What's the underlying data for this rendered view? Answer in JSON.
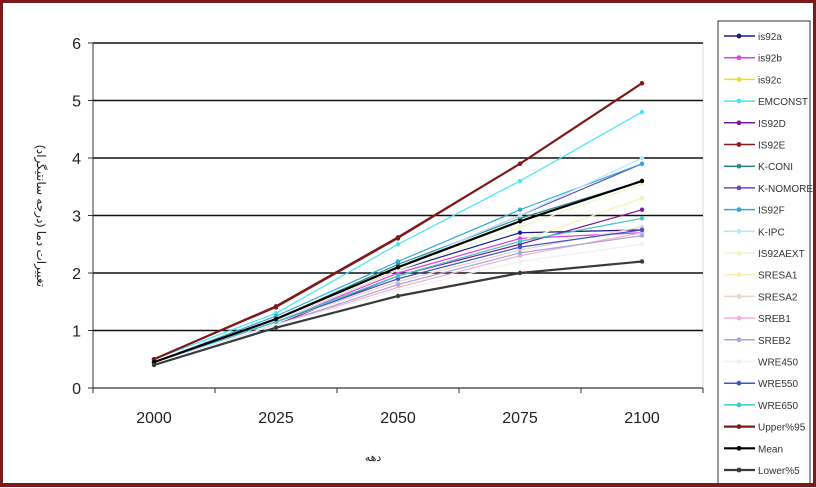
{
  "chart_data": {
    "type": "line",
    "title": "",
    "xlabel": "دهه",
    "ylabel": "تغییرات دما (درجه سانتیگراد)",
    "x": [
      2000,
      2025,
      2050,
      2075,
      2100
    ],
    "x_tick_labels": [
      "2000",
      "2025",
      "2050",
      "2075",
      "2100"
    ],
    "ylim": [
      0,
      6
    ],
    "y_tick_labels": [
      "0",
      "1",
      "2",
      "3",
      "4",
      "5",
      "6"
    ],
    "grid": "horizontal",
    "legend_position": "right",
    "series": [
      {
        "name": "is92a",
        "color": "#1a1a8c",
        "width": 1.2,
        "values": [
          0.45,
          1.15,
          2.05,
          2.7,
          2.75
        ]
      },
      {
        "name": "is92b",
        "color": "#e040e0",
        "width": 1.2,
        "values": [
          0.45,
          1.15,
          2.0,
          2.6,
          2.7
        ]
      },
      {
        "name": "is92c",
        "color": "#f0e020",
        "width": 1.2,
        "values": [
          0.4,
          1.05,
          1.6,
          2.0,
          2.2
        ]
      },
      {
        "name": "EMCONST",
        "color": "#40e8f0",
        "width": 1.2,
        "values": [
          0.5,
          1.3,
          2.5,
          3.6,
          4.8
        ]
      },
      {
        "name": "IS92D",
        "color": "#7a1a9c",
        "width": 1.2,
        "values": [
          0.45,
          1.1,
          1.95,
          2.5,
          3.1
        ]
      },
      {
        "name": "IS92E",
        "color": "#8c1a1a",
        "width": 1.2,
        "values": [
          0.5,
          1.4,
          2.6,
          3.9,
          5.3
        ]
      },
      {
        "name": "K-CONI",
        "color": "#2a8a8a",
        "width": 1.2,
        "values": [
          0.45,
          1.2,
          2.15,
          2.95,
          3.6
        ]
      },
      {
        "name": "K-NOMORE",
        "color": "#6a4ab8",
        "width": 1.2,
        "values": [
          0.45,
          1.2,
          2.1,
          3.0,
          3.9
        ]
      },
      {
        "name": "IS92F",
        "color": "#30a8d8",
        "width": 1.2,
        "values": [
          0.45,
          1.25,
          2.2,
          3.1,
          3.9
        ]
      },
      {
        "name": "K-IPC",
        "color": "#b8e8f8",
        "width": 1.2,
        "values": [
          0.45,
          1.2,
          2.1,
          3.0,
          4.0
        ]
      },
      {
        "name": "IS92AEXT",
        "color": "#e8f8c8",
        "width": 1.2,
        "values": [
          0.45,
          1.15,
          2.05,
          2.8,
          3.55
        ]
      },
      {
        "name": "SRESA1",
        "color": "#f8f0b0",
        "width": 1.2,
        "values": [
          0.45,
          1.15,
          1.95,
          2.55,
          3.3
        ]
      },
      {
        "name": "SRESA2",
        "color": "#f0d0c8",
        "width": 1.2,
        "values": [
          0.45,
          1.15,
          1.85,
          2.4,
          2.8
        ]
      },
      {
        "name": "SREB1",
        "color": "#f0b0d8",
        "width": 1.2,
        "values": [
          0.45,
          1.1,
          1.75,
          2.3,
          2.7
        ]
      },
      {
        "name": "SREB2",
        "color": "#a8a8d8",
        "width": 1.2,
        "values": [
          0.45,
          1.1,
          1.8,
          2.35,
          2.65
        ]
      },
      {
        "name": "WRE450",
        "color": "#f0f0f0",
        "width": 1.2,
        "values": [
          0.45,
          1.1,
          1.7,
          2.2,
          2.5
        ]
      },
      {
        "name": "WRE550",
        "color": "#3a58c8",
        "width": 1.2,
        "values": [
          0.45,
          1.15,
          1.9,
          2.45,
          2.75
        ]
      },
      {
        "name": "WRE650",
        "color": "#40c8c8",
        "width": 1.2,
        "values": [
          0.45,
          1.15,
          1.95,
          2.55,
          2.95
        ]
      },
      {
        "name": "Upper%95",
        "color": "#7a1a1a",
        "width": 2.2,
        "values": [
          0.5,
          1.42,
          2.62,
          3.9,
          5.3
        ]
      },
      {
        "name": "Mean",
        "color": "#000000",
        "width": 2.2,
        "values": [
          0.45,
          1.2,
          2.1,
          2.9,
          3.6
        ]
      },
      {
        "name": "Lower%5",
        "color": "#3a3a3a",
        "width": 2.2,
        "values": [
          0.4,
          1.05,
          1.6,
          2.0,
          2.2
        ]
      }
    ]
  }
}
